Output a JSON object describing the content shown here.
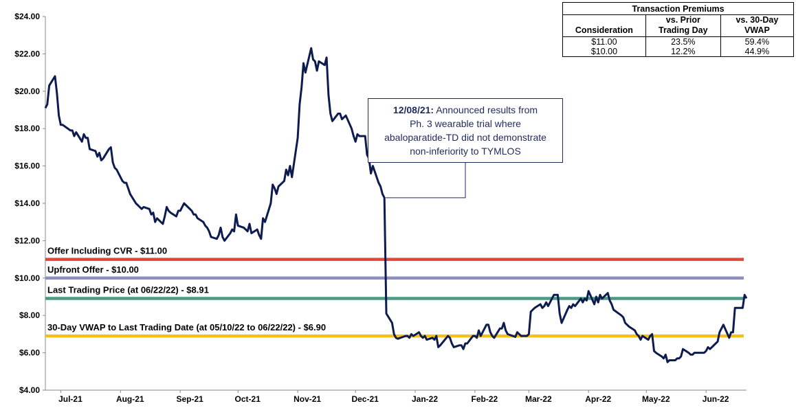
{
  "chart_data": {
    "type": "line",
    "title": "",
    "xlabel": "",
    "ylabel": "",
    "ylim": [
      4,
      24
    ],
    "y_ticks": [
      "$24.00",
      "$22.00",
      "$20.00",
      "$18.00",
      "$16.00",
      "$14.00",
      "$12.00",
      "$10.00",
      "$8.00",
      "$6.00",
      "$4.00"
    ],
    "x_range": [
      "2021-06-23",
      "2022-06-22"
    ],
    "x_ticks": [
      {
        "label": "Jul-21",
        "date": "2021-07-01"
      },
      {
        "label": "Aug-21",
        "date": "2021-08-01"
      },
      {
        "label": "Sep-21",
        "date": "2021-09-01"
      },
      {
        "label": "Oct-21",
        "date": "2021-10-01"
      },
      {
        "label": "Nov-21",
        "date": "2021-11-01"
      },
      {
        "label": "Dec-21",
        "date": "2021-12-01"
      },
      {
        "label": "Jan-22",
        "date": "2022-01-01"
      },
      {
        "label": "Feb-22",
        "date": "2022-02-01"
      },
      {
        "label": "Mar-22",
        "date": "2022-03-01"
      },
      {
        "label": "Apr-22",
        "date": "2022-04-01"
      },
      {
        "label": "May-22",
        "date": "2022-05-01"
      },
      {
        "label": "Jun-22",
        "date": "2022-06-01"
      }
    ],
    "grid": false,
    "series": [
      {
        "color": "#0d1b4f",
        "points": [
          [
            "2021-06-23",
            19.1
          ],
          [
            "2021-06-24",
            19.3
          ],
          [
            "2021-06-25",
            20.3
          ],
          [
            "2021-06-28",
            20.8
          ],
          [
            "2021-06-29",
            19.9
          ],
          [
            "2021-06-30",
            18.7
          ],
          [
            "2021-07-01",
            18.2
          ],
          [
            "2021-07-02",
            18.2
          ],
          [
            "2021-07-06",
            17.9
          ],
          [
            "2021-07-07",
            17.9
          ],
          [
            "2021-07-08",
            17.6
          ],
          [
            "2021-07-09",
            17.8
          ],
          [
            "2021-07-12",
            17.3
          ],
          [
            "2021-07-13",
            17.7
          ],
          [
            "2021-07-14",
            17.5
          ],
          [
            "2021-07-15",
            17.5
          ],
          [
            "2021-07-16",
            16.9
          ],
          [
            "2021-07-19",
            16.8
          ],
          [
            "2021-07-20",
            16.5
          ],
          [
            "2021-07-21",
            16.7
          ],
          [
            "2021-07-22",
            16.3
          ],
          [
            "2021-07-23",
            16.4
          ],
          [
            "2021-07-26",
            16.9
          ],
          [
            "2021-07-27",
            17.0
          ],
          [
            "2021-07-28",
            16.2
          ],
          [
            "2021-07-29",
            15.9
          ],
          [
            "2021-07-30",
            15.8
          ],
          [
            "2021-08-02",
            15.2
          ],
          [
            "2021-08-03",
            15.1
          ],
          [
            "2021-08-04",
            15.1
          ],
          [
            "2021-08-05",
            14.8
          ],
          [
            "2021-08-06",
            14.5
          ],
          [
            "2021-08-09",
            14.0
          ],
          [
            "2021-08-10",
            13.9
          ],
          [
            "2021-08-11",
            13.8
          ],
          [
            "2021-08-12",
            13.7
          ],
          [
            "2021-08-13",
            13.8
          ],
          [
            "2021-08-16",
            13.7
          ],
          [
            "2021-08-17",
            13.4
          ],
          [
            "2021-08-18",
            13.5
          ],
          [
            "2021-08-19",
            13.0
          ],
          [
            "2021-08-20",
            13.2
          ],
          [
            "2021-08-23",
            12.9
          ],
          [
            "2021-08-24",
            13.3
          ],
          [
            "2021-08-25",
            13.8
          ],
          [
            "2021-08-26",
            13.6
          ],
          [
            "2021-08-27",
            13.5
          ],
          [
            "2021-08-30",
            13.3
          ],
          [
            "2021-08-31",
            13.6
          ],
          [
            "2021-09-01",
            13.6
          ],
          [
            "2021-09-02",
            13.8
          ],
          [
            "2021-09-03",
            14.0
          ],
          [
            "2021-09-07",
            13.6
          ],
          [
            "2021-09-08",
            13.4
          ],
          [
            "2021-09-09",
            13.4
          ],
          [
            "2021-09-10",
            13.2
          ],
          [
            "2021-09-13",
            13.0
          ],
          [
            "2021-09-14",
            12.8
          ],
          [
            "2021-09-15",
            12.7
          ],
          [
            "2021-09-16",
            12.5
          ],
          [
            "2021-09-17",
            12.2
          ],
          [
            "2021-09-20",
            12.1
          ],
          [
            "2021-09-21",
            12.3
          ],
          [
            "2021-09-22",
            12.7
          ],
          [
            "2021-09-23",
            12.2
          ],
          [
            "2021-09-24",
            12.0
          ],
          [
            "2021-09-27",
            12.4
          ],
          [
            "2021-09-28",
            12.6
          ],
          [
            "2021-09-29",
            12.5
          ],
          [
            "2021-09-30",
            13.4
          ],
          [
            "2021-10-01",
            12.8
          ],
          [
            "2021-10-04",
            12.7
          ],
          [
            "2021-10-05",
            12.6
          ],
          [
            "2021-10-06",
            12.5
          ],
          [
            "2021-10-07",
            12.9
          ],
          [
            "2021-10-08",
            12.4
          ],
          [
            "2021-10-11",
            12.6
          ],
          [
            "2021-10-12",
            12.3
          ],
          [
            "2021-10-13",
            12.1
          ],
          [
            "2021-10-14",
            13.2
          ],
          [
            "2021-10-15",
            13.0
          ],
          [
            "2021-10-18",
            14.0
          ],
          [
            "2021-10-19",
            15.0
          ],
          [
            "2021-10-20",
            14.8
          ],
          [
            "2021-10-21",
            14.5
          ],
          [
            "2021-10-22",
            14.9
          ],
          [
            "2021-10-25",
            15.2
          ],
          [
            "2021-10-26",
            15.8
          ],
          [
            "2021-10-27",
            15.5
          ],
          [
            "2021-10-28",
            16.0
          ],
          [
            "2021-10-29",
            15.4
          ],
          [
            "2021-11-01",
            17.5
          ],
          [
            "2021-11-02",
            19.3
          ],
          [
            "2021-11-03",
            20.2
          ],
          [
            "2021-11-04",
            21.5
          ],
          [
            "2021-11-05",
            21.0
          ],
          [
            "2021-11-08",
            22.3
          ],
          [
            "2021-11-09",
            21.7
          ],
          [
            "2021-11-10",
            21.6
          ],
          [
            "2021-11-11",
            21.1
          ],
          [
            "2021-11-12",
            21.6
          ],
          [
            "2021-11-15",
            21.4
          ],
          [
            "2021-11-16",
            21.8
          ],
          [
            "2021-11-17",
            19.8
          ],
          [
            "2021-11-18",
            18.8
          ],
          [
            "2021-11-19",
            18.4
          ],
          [
            "2021-11-22",
            18.8
          ],
          [
            "2021-11-23",
            18.8
          ],
          [
            "2021-11-24",
            18.5
          ],
          [
            "2021-11-26",
            18.7
          ],
          [
            "2021-11-29",
            18.0
          ],
          [
            "2021-11-30",
            17.6
          ],
          [
            "2021-12-01",
            17.3
          ],
          [
            "2021-12-02",
            17.7
          ],
          [
            "2021-12-03",
            17.6
          ],
          [
            "2021-12-06",
            17.6
          ],
          [
            "2021-12-07",
            16.6
          ],
          [
            "2021-12-08",
            16.4
          ],
          [
            "2021-12-09",
            15.6
          ],
          [
            "2021-12-10",
            16.0
          ],
          [
            "2021-12-13",
            15.1
          ],
          [
            "2021-12-14",
            14.9
          ],
          [
            "2021-12-15",
            14.5
          ],
          [
            "2021-12-16",
            14.3
          ],
          [
            "2021-12-17",
            8.1
          ],
          [
            "2021-12-20",
            7.6
          ],
          [
            "2021-12-21",
            7.0
          ],
          [
            "2021-12-22",
            6.8
          ],
          [
            "2021-12-23",
            6.75
          ],
          [
            "2021-12-27",
            6.9
          ],
          [
            "2021-12-28",
            6.9
          ],
          [
            "2021-12-29",
            6.8
          ],
          [
            "2021-12-30",
            7.0
          ],
          [
            "2021-12-31",
            6.9
          ],
          [
            "2022-01-03",
            7.1
          ],
          [
            "2022-01-04",
            6.9
          ],
          [
            "2022-01-05",
            6.8
          ],
          [
            "2022-01-06",
            6.9
          ],
          [
            "2022-01-07",
            6.7
          ],
          [
            "2022-01-10",
            6.8
          ],
          [
            "2022-01-11",
            6.7
          ],
          [
            "2022-01-12",
            6.9
          ],
          [
            "2022-01-13",
            6.3
          ],
          [
            "2022-01-14",
            6.4
          ],
          [
            "2022-01-18",
            6.9
          ],
          [
            "2022-01-19",
            6.8
          ],
          [
            "2022-01-20",
            6.5
          ],
          [
            "2022-01-21",
            6.3
          ],
          [
            "2022-01-24",
            6.4
          ],
          [
            "2022-01-25",
            6.4
          ],
          [
            "2022-01-26",
            6.2
          ],
          [
            "2022-01-27",
            6.5
          ],
          [
            "2022-01-28",
            6.5
          ],
          [
            "2022-01-31",
            6.9
          ],
          [
            "2022-02-01",
            6.9
          ],
          [
            "2022-02-02",
            6.8
          ],
          [
            "2022-02-03",
            7.2
          ],
          [
            "2022-02-04",
            6.9
          ],
          [
            "2022-02-07",
            7.5
          ],
          [
            "2022-02-08",
            7.5
          ],
          [
            "2022-02-09",
            7.1
          ],
          [
            "2022-02-10",
            6.9
          ],
          [
            "2022-02-11",
            6.8
          ],
          [
            "2022-02-14",
            7.3
          ],
          [
            "2022-02-15",
            7.3
          ],
          [
            "2022-02-16",
            7.6
          ],
          [
            "2022-02-17",
            7.2
          ],
          [
            "2022-02-18",
            7.0
          ],
          [
            "2022-02-22",
            6.85
          ],
          [
            "2022-02-23",
            7.1
          ],
          [
            "2022-02-24",
            7.0
          ],
          [
            "2022-02-25",
            6.9
          ],
          [
            "2022-02-28",
            6.9
          ],
          [
            "2022-03-01",
            7.0
          ],
          [
            "2022-03-02",
            8.2
          ],
          [
            "2022-03-03",
            8.3
          ],
          [
            "2022-03-04",
            8.4
          ],
          [
            "2022-03-07",
            8.6
          ],
          [
            "2022-03-08",
            8.4
          ],
          [
            "2022-03-09",
            8.5
          ],
          [
            "2022-03-10",
            8.7
          ],
          [
            "2022-03-11",
            8.5
          ],
          [
            "2022-03-14",
            9.1
          ],
          [
            "2022-03-15",
            9.1
          ],
          [
            "2022-03-16",
            9.1
          ],
          [
            "2022-03-17",
            8.1
          ],
          [
            "2022-03-18",
            7.6
          ],
          [
            "2022-03-21",
            8.3
          ],
          [
            "2022-03-22",
            8.5
          ],
          [
            "2022-03-23",
            8.4
          ],
          [
            "2022-03-24",
            8.6
          ],
          [
            "2022-03-25",
            8.5
          ],
          [
            "2022-03-28",
            8.9
          ],
          [
            "2022-03-29",
            8.7
          ],
          [
            "2022-03-30",
            8.9
          ],
          [
            "2022-03-31",
            8.8
          ],
          [
            "2022-04-01",
            9.3
          ],
          [
            "2022-04-04",
            8.6
          ],
          [
            "2022-04-05",
            9.0
          ],
          [
            "2022-04-06",
            8.7
          ],
          [
            "2022-04-07",
            9.1
          ],
          [
            "2022-04-08",
            8.9
          ],
          [
            "2022-04-11",
            9.2
          ],
          [
            "2022-04-12",
            8.8
          ],
          [
            "2022-04-13",
            8.6
          ],
          [
            "2022-04-14",
            8.3
          ],
          [
            "2022-04-18",
            8.0
          ],
          [
            "2022-04-19",
            7.9
          ],
          [
            "2022-04-20",
            7.6
          ],
          [
            "2022-04-21",
            7.5
          ],
          [
            "2022-04-22",
            7.4
          ],
          [
            "2022-04-25",
            7.2
          ],
          [
            "2022-04-26",
            7.0
          ],
          [
            "2022-04-27",
            6.9
          ],
          [
            "2022-04-28",
            6.7
          ],
          [
            "2022-04-29",
            6.9
          ],
          [
            "2022-05-02",
            6.7
          ],
          [
            "2022-05-03",
            6.9
          ],
          [
            "2022-05-04",
            7.0
          ],
          [
            "2022-05-05",
            6.1
          ],
          [
            "2022-05-06",
            6.0
          ],
          [
            "2022-05-09",
            5.8
          ],
          [
            "2022-05-10",
            5.7
          ],
          [
            "2022-05-11",
            5.9
          ],
          [
            "2022-05-12",
            5.5
          ],
          [
            "2022-05-13",
            5.6
          ],
          [
            "2022-05-16",
            5.6
          ],
          [
            "2022-05-17",
            5.7
          ],
          [
            "2022-05-18",
            5.7
          ],
          [
            "2022-05-19",
            5.8
          ],
          [
            "2022-05-20",
            6.2
          ],
          [
            "2022-05-23",
            6.0
          ],
          [
            "2022-05-24",
            5.9
          ],
          [
            "2022-05-25",
            5.9
          ],
          [
            "2022-05-26",
            6.0
          ],
          [
            "2022-05-27",
            6.0
          ],
          [
            "2022-05-31",
            6.0
          ],
          [
            "2022-06-01",
            6.1
          ],
          [
            "2022-06-02",
            6.3
          ],
          [
            "2022-06-03",
            6.2
          ],
          [
            "2022-06-06",
            6.5
          ],
          [
            "2022-06-07",
            6.6
          ],
          [
            "2022-06-08",
            7.1
          ],
          [
            "2022-06-09",
            7.3
          ],
          [
            "2022-06-10",
            7.5
          ],
          [
            "2022-06-13",
            6.8
          ],
          [
            "2022-06-14",
            7.1
          ],
          [
            "2022-06-15",
            7.1
          ],
          [
            "2022-06-16",
            8.4
          ],
          [
            "2022-06-17",
            8.4
          ],
          [
            "2022-06-20",
            8.4
          ],
          [
            "2022-06-21",
            9.1
          ],
          [
            "2022-06-22",
            8.91
          ]
        ]
      }
    ],
    "reference_lines": [
      {
        "label": "Offer Including CVR - $11.00",
        "value": 11.0,
        "color": "#e0473a"
      },
      {
        "label": "Upfront Offer - $10.00",
        "value": 10.0,
        "color": "#8c8fc0"
      },
      {
        "label": "Last Trading Price (at 06/22/22) - $8.91",
        "value": 8.91,
        "color": "#4a9a84"
      },
      {
        "label": "30-Day VWAP to Last Trading Date (at 05/10/22 to 06/22/22) - $6.90",
        "value": 6.9,
        "color": "#f5c118"
      }
    ],
    "annotation": {
      "bold": "12/08/21:",
      "text_line1": " Announced results from",
      "text_line2": "Ph. 3 wearable trial where",
      "text_line3": "abaloparatide-TD did not demonstrate",
      "text_line4": "non-inferiority to TYMLOS",
      "anchor_date": "2021-12-16",
      "anchor_value": 14.3
    }
  },
  "premiums_table": {
    "title": "Transaction Premiums",
    "col_consideration": "Consideration",
    "col_prior_line1": "vs. Prior",
    "col_prior_line2": "Trading Day",
    "col_vwap_line1": "vs. 30-Day",
    "col_vwap_line2": "VWAP",
    "rows": [
      {
        "consideration": "$11.00",
        "prior": "23.5%",
        "vwap": "59.4%"
      },
      {
        "consideration": "$10.00",
        "prior": "12.2%",
        "vwap": "44.9%"
      }
    ]
  }
}
